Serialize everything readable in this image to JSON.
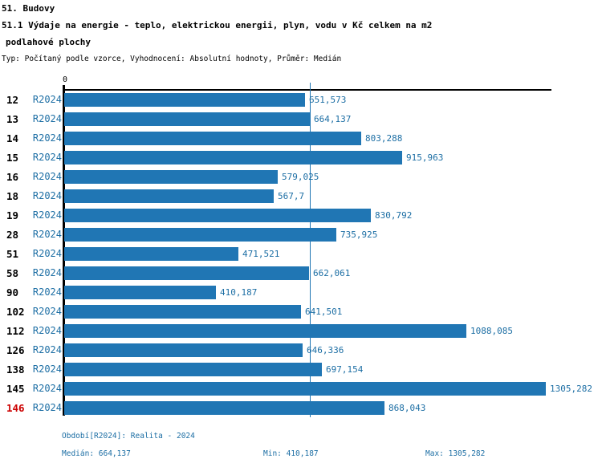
{
  "header": {
    "title": "51. Budovy",
    "subtitle_line1": "51.1 Výdaje na energie - teplo, elektrickou energii, plyn, vodu v Kč celkem na m2",
    "subtitle_line2": "podlahové plochy",
    "meta": "Typ: Počítaný podle vzorce, Vyhodnocení: Absolutní hodnoty, Průměr: Medián"
  },
  "chart_data": {
    "type": "bar",
    "orientation": "horizontal",
    "title": "51.1 Výdaje na energie - teplo, elektrickou energii, plyn, vodu v Kč celkem na m2 podlahové plochy",
    "axis_zero_label": "0",
    "series_name": "R2024",
    "categories": [
      "12",
      "13",
      "14",
      "15",
      "16",
      "18",
      "19",
      "28",
      "51",
      "58",
      "90",
      "102",
      "112",
      "126",
      "138",
      "145",
      "146"
    ],
    "values": [
      651.573,
      664.137,
      803.288,
      915.963,
      579.025,
      567.7,
      830.792,
      735.925,
      471.521,
      662.061,
      410.187,
      641.501,
      1088.085,
      646.336,
      697.154,
      1305.282,
      868.043
    ],
    "value_labels": [
      "651,573",
      "664,137",
      "803,288",
      "915,963",
      "579,025",
      "567,7",
      "830,792",
      "735,925",
      "471,521",
      "662,061",
      "410,187",
      "641,501",
      "1088,085",
      "646,336",
      "697,154",
      "1305,282",
      "868,043"
    ],
    "highlighted_category": "146",
    "median_line_value": 664.137,
    "xlim": [
      0,
      1400
    ],
    "grid": false,
    "legend_position": "none",
    "bar_color": "#2076B4",
    "label_color": "#1C6EA4",
    "highlight_color": "#CC0000",
    "statistics": {
      "median": 664.137,
      "min": 410.187,
      "max": 1305.282
    }
  },
  "footer": {
    "period": "Období[R2024]: Realita - 2024",
    "median": "Medián: 664,137",
    "min": "Min: 410,187",
    "max": "Max: 1305,282"
  }
}
